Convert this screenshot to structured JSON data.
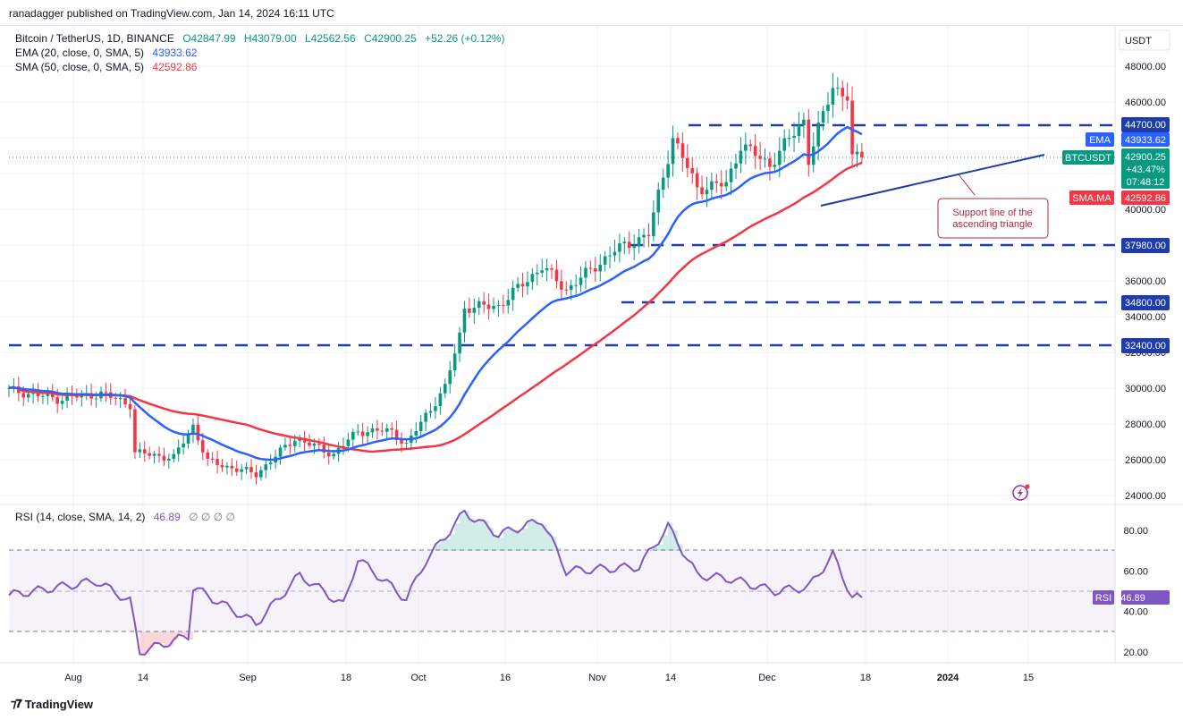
{
  "header": {
    "publisher_line": "ranadagger published on TradingView.com, Jan 14, 2024 16:11 UTC"
  },
  "legend": {
    "symbol": "Bitcoin / TetherUS, 1D, BINANCE",
    "open": "O42847.99",
    "high": "H43079.00",
    "low": "L42562.56",
    "close": "C42900.25",
    "change": "+52.26 (+0.12%)",
    "ema_label": "EMA (20, close, 0, SMA, 5)",
    "ema_value": "43933.62",
    "sma_label": "SMA (50, close, 0, SMA, 5)",
    "sma_value": "42592.86",
    "rsi_label": "RSI (14, close, SMA, 14, 2)",
    "rsi_value": "46.89",
    "rsi_extra": "∅ ∅ ∅ ∅"
  },
  "axis": {
    "currency": "USDT",
    "price_ticks": [
      "48000.00",
      "46000.00",
      "44000.00",
      "42000.00",
      "40000.00",
      "38000.00",
      "36000.00",
      "34000.00",
      "32000.00",
      "30000.00",
      "28000.00",
      "26000.00",
      "24000.00"
    ],
    "rsi_ticks": [
      "80.00",
      "60.00",
      "40.00",
      "20.00"
    ],
    "time_ticks": [
      "Aug",
      "14",
      "Sep",
      "18",
      "Oct",
      "16",
      "Nov",
      "14",
      "Dec",
      "18",
      "2024",
      "15"
    ]
  },
  "labels": {
    "level_44700": "44700.00",
    "level_37980": "37980.00",
    "level_34800": "34800.00",
    "level_32400": "32400.00",
    "ema_tag": "EMA",
    "ema_tag_value": "43933.62",
    "symbol_tag": "BTCUSDT",
    "price_tag": "42900.25",
    "pct_tag": "+43.47%",
    "countdown_tag": "07:48:12",
    "sma_tag": "SMA:MA",
    "sma_tag_value": "42592.86",
    "rsi_tag": "RSI",
    "rsi_tag_value": "46.89",
    "annotation_line1": "Support line of the",
    "annotation_line2": "ascending triangle"
  },
  "brand": {
    "name": "TradingView"
  },
  "colors": {
    "up": "#089981",
    "down": "#f23645",
    "ema": "#2962ff",
    "sma": "#f23645",
    "rsi": "#7e57c2",
    "level": "#1e3caa"
  },
  "chart_data": {
    "type": "line",
    "title": "Bitcoin / TetherUS, 1D, BINANCE",
    "ylim": [
      23500,
      49500
    ],
    "horizontal_levels": [
      44700,
      37980,
      34800,
      32400
    ],
    "close_keypoints": [
      {
        "date": "2023-07-22",
        "price": 29900
      },
      {
        "date": "2023-08-01",
        "price": 29400
      },
      {
        "date": "2023-08-10",
        "price": 29700
      },
      {
        "date": "2023-08-16",
        "price": 29100
      },
      {
        "date": "2023-08-17",
        "price": 26400
      },
      {
        "date": "2023-08-25",
        "price": 26100
      },
      {
        "date": "2023-08-29",
        "price": 27900
      },
      {
        "date": "2023-09-01",
        "price": 25900
      },
      {
        "date": "2023-09-11",
        "price": 25200
      },
      {
        "date": "2023-09-19",
        "price": 27200
      },
      {
        "date": "2023-09-27",
        "price": 26300
      },
      {
        "date": "2023-10-02",
        "price": 27600
      },
      {
        "date": "2023-10-09",
        "price": 27600
      },
      {
        "date": "2023-10-12",
        "price": 26800
      },
      {
        "date": "2023-10-16",
        "price": 28500
      },
      {
        "date": "2023-10-20",
        "price": 30000
      },
      {
        "date": "2023-10-23",
        "price": 33000
      },
      {
        "date": "2023-10-24",
        "price": 34500
      },
      {
        "date": "2023-10-31",
        "price": 34600
      },
      {
        "date": "2023-11-09",
        "price": 36800
      },
      {
        "date": "2023-11-14",
        "price": 35500
      },
      {
        "date": "2023-11-24",
        "price": 37700
      },
      {
        "date": "2023-12-01",
        "price": 38600
      },
      {
        "date": "2023-12-04",
        "price": 41900
      },
      {
        "date": "2023-12-06",
        "price": 44000
      },
      {
        "date": "2023-12-11",
        "price": 41200
      },
      {
        "date": "2023-12-17",
        "price": 41400
      },
      {
        "date": "2023-12-20",
        "price": 43600
      },
      {
        "date": "2023-12-26",
        "price": 42500
      },
      {
        "date": "2024-01-02",
        "price": 45000
      },
      {
        "date": "2024-01-03",
        "price": 42800
      },
      {
        "date": "2024-01-08",
        "price": 46900
      },
      {
        "date": "2024-01-11",
        "price": 46300
      },
      {
        "date": "2024-01-12",
        "price": 42800
      },
      {
        "date": "2024-01-14",
        "price": 42900
      }
    ],
    "series": [
      {
        "name": "EMA (20, close, 0, SMA, 5)",
        "last": 43933.62
      },
      {
        "name": "SMA (50, close, 0, SMA, 5)",
        "last": 42592.86
      }
    ],
    "rsi": {
      "ylim": [
        10,
        92
      ],
      "bands": [
        70,
        50,
        30
      ],
      "keypoints": [
        {
          "date": "2023-07-22",
          "value": 48
        },
        {
          "date": "2023-08-09",
          "value": 55
        },
        {
          "date": "2023-08-16",
          "value": 45
        },
        {
          "date": "2023-08-18",
          "value": 20
        },
        {
          "date": "2023-08-28",
          "value": 28
        },
        {
          "date": "2023-08-29",
          "value": 52
        },
        {
          "date": "2023-09-11",
          "value": 34
        },
        {
          "date": "2023-09-20",
          "value": 58
        },
        {
          "date": "2023-09-29",
          "value": 43
        },
        {
          "date": "2023-10-02",
          "value": 66
        },
        {
          "date": "2023-10-12",
          "value": 46
        },
        {
          "date": "2023-10-16",
          "value": 65
        },
        {
          "date": "2023-10-24",
          "value": 89
        },
        {
          "date": "2023-10-31",
          "value": 78
        },
        {
          "date": "2023-11-09",
          "value": 85
        },
        {
          "date": "2023-11-14",
          "value": 60
        },
        {
          "date": "2023-11-29",
          "value": 62
        },
        {
          "date": "2023-12-05",
          "value": 82
        },
        {
          "date": "2023-12-11",
          "value": 58
        },
        {
          "date": "2023-12-18",
          "value": 56
        },
        {
          "date": "2023-12-27",
          "value": 50
        },
        {
          "date": "2024-01-03",
          "value": 52
        },
        {
          "date": "2024-01-08",
          "value": 68
        },
        {
          "date": "2024-01-12",
          "value": 47
        },
        {
          "date": "2024-01-14",
          "value": 46.89
        }
      ]
    }
  }
}
